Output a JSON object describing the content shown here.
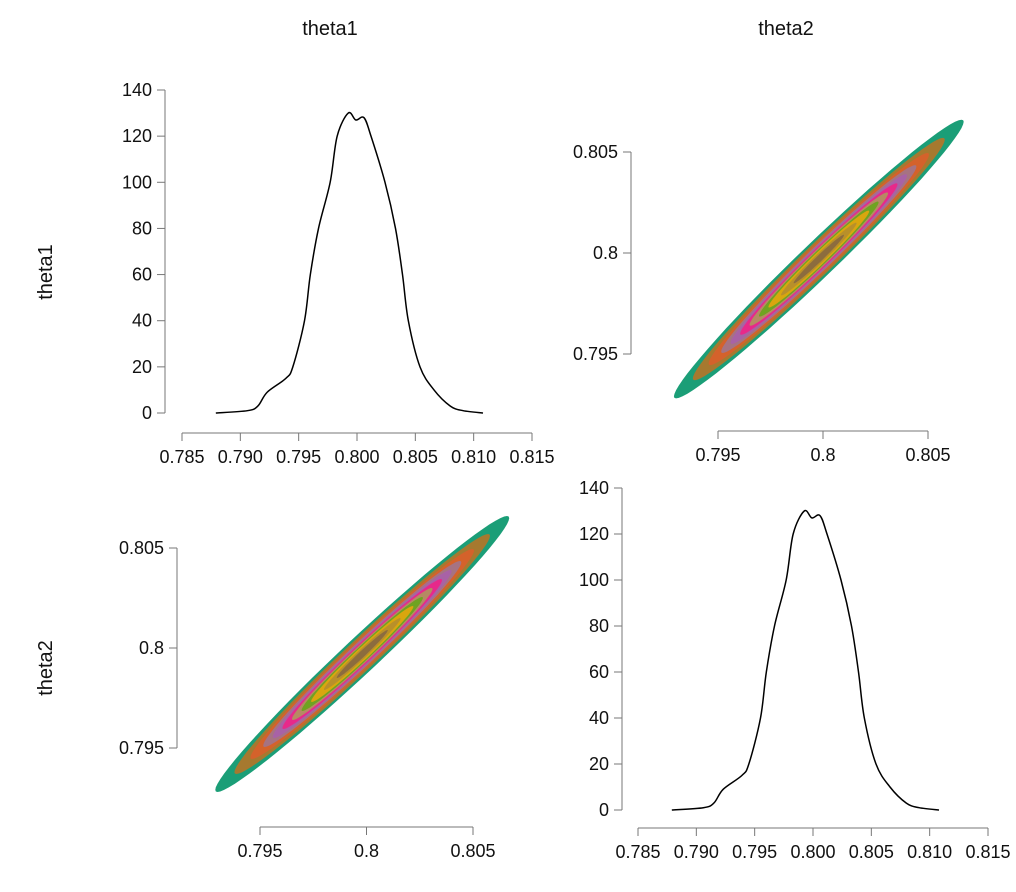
{
  "chart_data": {
    "type": "pairs",
    "column_titles": [
      "theta1",
      "theta2"
    ],
    "row_titles": [
      "theta1",
      "theta2"
    ],
    "density": {
      "type": "line",
      "x": [
        0.7879,
        0.7906,
        0.7915,
        0.7923,
        0.7939,
        0.7945,
        0.7955,
        0.796,
        0.7967,
        0.7977,
        0.7983,
        0.79925,
        0.7999,
        0.8006,
        0.8012,
        0.8024,
        0.8033,
        0.8039,
        0.8044,
        0.8054,
        0.8066,
        0.808,
        0.8091,
        0.8108
      ],
      "y": [
        0,
        1,
        3,
        9,
        15,
        20,
        40,
        60,
        80,
        100,
        120,
        130,
        127,
        128,
        120,
        100,
        80,
        60,
        40,
        20,
        10,
        3,
        1,
        0
      ],
      "xlim": [
        0.785,
        0.815
      ],
      "ylim": [
        0,
        140
      ],
      "xticks": [
        "0.785",
        "0.790",
        "0.795",
        "0.800",
        "0.805",
        "0.810",
        "0.815"
      ],
      "yticks": [
        "0",
        "20",
        "40",
        "60",
        "80",
        "100",
        "120",
        "140"
      ]
    },
    "contour": {
      "type": "filled-contour",
      "mean": [
        0.7998,
        0.7997
      ],
      "sd": 0.003,
      "rho": 0.985,
      "level_radii": [
        2.3,
        2.0,
        1.75,
        1.55,
        1.4,
        1.25,
        1.1,
        0.95,
        0.8,
        0.6,
        0.4
      ],
      "level_colors": [
        "#1B9E77",
        "#A6792F",
        "#D4622B",
        "#A67382",
        "#A862A6",
        "#E7298A",
        "#B58A63",
        "#6FA321",
        "#D9A60E",
        "#B8902A",
        "#8C6C3E"
      ],
      "xticks": [
        "0.795",
        "0.8",
        "0.805"
      ],
      "yticks": [
        "0.795",
        "0.8",
        "0.805"
      ],
      "xtick_values": [
        0.795,
        0.8,
        0.805
      ],
      "ytick_values": [
        0.795,
        0.8,
        0.805
      ]
    }
  }
}
